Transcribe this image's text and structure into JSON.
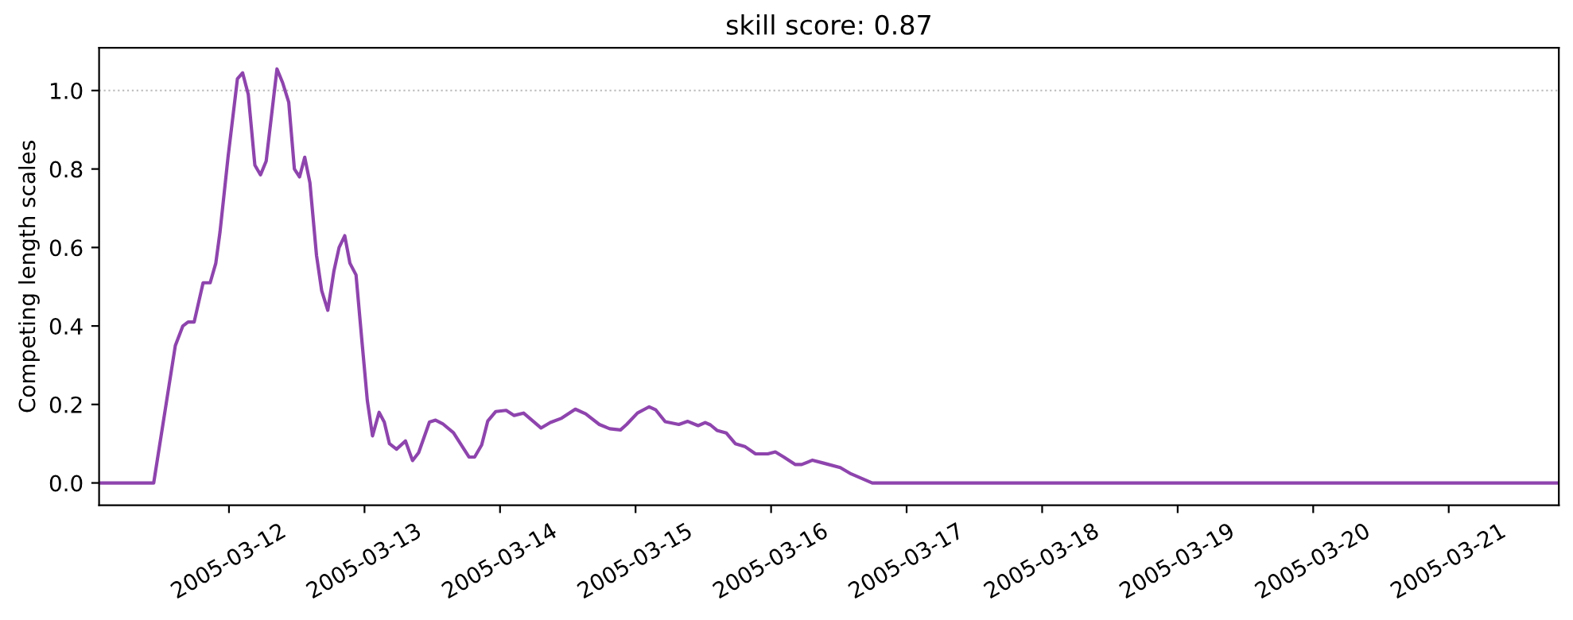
{
  "chart_data": {
    "type": "line",
    "title": "skill score: 0.87",
    "ylabel": "Competing length scales",
    "x": [
      "2005-03-11T01:00",
      "2005-03-11T10:40",
      "2005-03-11T14:30",
      "2005-03-11T15:50",
      "2005-03-11T16:45",
      "2005-03-11T17:50",
      "2005-03-11T19:25",
      "2005-03-11T20:40",
      "2005-03-11T21:40",
      "2005-03-11T22:25",
      "2005-03-11T23:50",
      "2005-03-12T01:30",
      "2005-03-12T02:25",
      "2005-03-12T03:25",
      "2005-03-12T04:35",
      "2005-03-12T05:35",
      "2005-03-12T06:35",
      "2005-03-12T08:30",
      "2005-03-12T09:30",
      "2005-03-12T10:35",
      "2005-03-12T11:35",
      "2005-03-12T12:30",
      "2005-03-12T13:25",
      "2005-03-12T14:20",
      "2005-03-12T15:30",
      "2005-03-12T16:25",
      "2005-03-12T17:30",
      "2005-03-12T18:35",
      "2005-03-12T19:30",
      "2005-03-12T20:30",
      "2005-03-12T21:25",
      "2005-03-12T22:30",
      "2005-03-12T23:35",
      "2005-03-13T00:30",
      "2005-03-13T01:25",
      "2005-03-13T02:35",
      "2005-03-13T03:30",
      "2005-03-13T04:25",
      "2005-03-13T05:40",
      "2005-03-13T07:15",
      "2005-03-13T08:30",
      "2005-03-13T09:35",
      "2005-03-13T11:30",
      "2005-03-13T12:35",
      "2005-03-13T13:50",
      "2005-03-13T15:45",
      "2005-03-13T18:30",
      "2005-03-13T19:30",
      "2005-03-13T20:45",
      "2005-03-13T21:50",
      "2005-03-13T23:15",
      "2005-03-14T01:05",
      "2005-03-14T02:30",
      "2005-03-14T04:10",
      "2005-03-14T07:15",
      "2005-03-14T08:55",
      "2005-03-14T10:55",
      "2005-03-14T13:20",
      "2005-03-14T15:10",
      "2005-03-14T17:35",
      "2005-03-14T19:25",
      "2005-03-14T21:20",
      "2005-03-14T22:25",
      "2005-03-15T00:20",
      "2005-03-15T02:25",
      "2005-03-15T03:35",
      "2005-03-15T05:15",
      "2005-03-15T07:40",
      "2005-03-15T09:15",
      "2005-03-15T11:05",
      "2005-03-15T12:20",
      "2005-03-15T13:15",
      "2005-03-15T14:25",
      "2005-03-15T16:05",
      "2005-03-15T17:40",
      "2005-03-15T19:20",
      "2005-03-15T21:15",
      "2005-03-15T23:25",
      "2005-03-16T00:45",
      "2005-03-16T02:15",
      "2005-03-16T04:15",
      "2005-03-16T05:25",
      "2005-03-16T07:20",
      "2005-03-16T09:25",
      "2005-03-16T12:15",
      "2005-03-16T14:10",
      "2005-03-16T17:55",
      "2005-03-21T19:30"
    ],
    "series": [
      {
        "color": "#8e44ad",
        "values": [
          0,
          0,
          0.35,
          0.4,
          0.41,
          0.41,
          0.51,
          0.51,
          0.56,
          0.64,
          0.83,
          1.03,
          1.045,
          0.99,
          0.81,
          0.785,
          0.82,
          1.055,
          1.02,
          0.97,
          0.8,
          0.78,
          0.83,
          0.765,
          0.58,
          0.49,
          0.44,
          0.54,
          0.6,
          0.63,
          0.56,
          0.53,
          0.355,
          0.21,
          0.12,
          0.18,
          0.155,
          0.1,
          0.086,
          0.107,
          0.057,
          0.077,
          0.155,
          0.16,
          0.151,
          0.128,
          0.066,
          0.066,
          0.097,
          0.158,
          0.182,
          0.185,
          0.172,
          0.178,
          0.14,
          0.154,
          0.165,
          0.188,
          0.176,
          0.149,
          0.138,
          0.135,
          0.149,
          0.178,
          0.194,
          0.186,
          0.156,
          0.149,
          0.157,
          0.146,
          0.154,
          0.148,
          0.134,
          0.127,
          0.1,
          0.093,
          0.074,
          0.074,
          0.079,
          0.066,
          0.047,
          0.047,
          0.058,
          0.05,
          0.039,
          0.023,
          0,
          0
        ]
      }
    ],
    "xlim": [
      "2005-03-11T01:00",
      "2005-03-21T19:30"
    ],
    "xticks": [
      "2005-03-12",
      "2005-03-13",
      "2005-03-14",
      "2005-03-15",
      "2005-03-16",
      "2005-03-17",
      "2005-03-18",
      "2005-03-19",
      "2005-03-20",
      "2005-03-21"
    ],
    "ylim": [
      -0.057,
      1.109
    ],
    "yticks": [
      {
        "value": 0,
        "label": "0.0"
      },
      {
        "value": 0.2,
        "label": "0.2"
      },
      {
        "value": 0.4,
        "label": "0.4"
      },
      {
        "value": 0.6,
        "label": "0.6"
      },
      {
        "value": 0.8,
        "label": "0.8"
      },
      {
        "value": 1.0,
        "label": "1.0"
      }
    ],
    "ref_lines": [
      {
        "axis": "y",
        "value": 1.0,
        "color": "#c0c0c0",
        "line_style": "dotted"
      }
    ],
    "marker": "none",
    "line_style": "solid"
  }
}
